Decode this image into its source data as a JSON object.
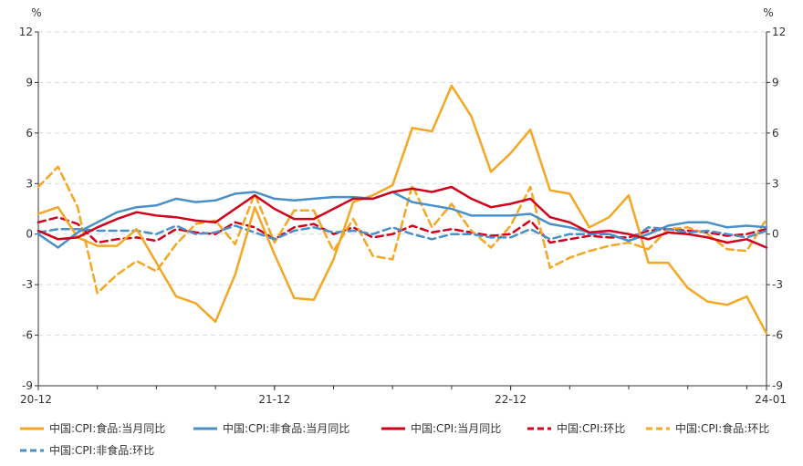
{
  "chart_data": {
    "type": "line",
    "title": "",
    "xlabel": "",
    "ylabel": "",
    "y_unit_left": "%",
    "y_unit_right": "%",
    "ylim": [
      -9,
      12
    ],
    "yticks": [
      -9,
      -6,
      -3,
      0,
      3,
      6,
      9,
      12
    ],
    "x_tick_labels": [
      {
        "label": "20-12",
        "index": 0
      },
      {
        "label": "21-12",
        "index": 12
      },
      {
        "label": "22-12",
        "index": 24
      },
      {
        "label": "24-01",
        "index": 37
      }
    ],
    "x": [
      "2020-12",
      "2021-01",
      "2021-02",
      "2021-03",
      "2021-04",
      "2021-05",
      "2021-06",
      "2021-07",
      "2021-08",
      "2021-09",
      "2021-10",
      "2021-11",
      "2021-12",
      "2022-01",
      "2022-02",
      "2022-03",
      "2022-04",
      "2022-05",
      "2022-06",
      "2022-07",
      "2022-08",
      "2022-09",
      "2022-10",
      "2022-11",
      "2022-12",
      "2023-01",
      "2023-02",
      "2023-03",
      "2023-04",
      "2023-05",
      "2023-06",
      "2023-07",
      "2023-08",
      "2023-09",
      "2023-10",
      "2023-11",
      "2023-12",
      "2024-01"
    ],
    "grid": true,
    "legend_position": "bottom",
    "series": [
      {
        "name": "中国:CPI:食品:当月同比",
        "color": "#F5A623",
        "dash": "solid",
        "values": [
          1.2,
          1.6,
          -0.2,
          -0.7,
          -0.7,
          0.3,
          -1.7,
          -3.7,
          -4.1,
          -5.2,
          -2.4,
          1.6,
          -1.2,
          -3.8,
          -3.9,
          -1.5,
          1.9,
          2.3,
          2.9,
          6.3,
          6.1,
          8.8,
          7.0,
          3.7,
          4.8,
          6.2,
          2.6,
          2.4,
          0.4,
          1.0,
          2.3,
          -1.7,
          -1.7,
          -3.2,
          -4.0,
          -4.2,
          -3.7,
          -5.9
        ]
      },
      {
        "name": "中国:CPI:非食品:当月同比",
        "color": "#4A90C8",
        "dash": "solid",
        "values": [
          0.0,
          -0.8,
          0.1,
          0.7,
          1.3,
          1.6,
          1.7,
          2.1,
          1.9,
          2.0,
          2.4,
          2.5,
          2.1,
          2.0,
          2.1,
          2.2,
          2.2,
          2.1,
          2.5,
          1.9,
          1.7,
          1.5,
          1.1,
          1.1,
          1.1,
          1.2,
          0.6,
          0.4,
          0.1,
          0.0,
          -0.4,
          0.0,
          0.5,
          0.7,
          0.7,
          0.4,
          0.5,
          0.4
        ]
      },
      {
        "name": "中国:CPI:当月同比",
        "color": "#D0021B",
        "dash": "solid",
        "values": [
          0.2,
          -0.3,
          -0.2,
          0.4,
          0.9,
          1.3,
          1.1,
          1.0,
          0.8,
          0.7,
          1.5,
          2.3,
          1.5,
          0.9,
          0.9,
          1.5,
          2.1,
          2.1,
          2.5,
          2.7,
          2.5,
          2.8,
          2.1,
          1.6,
          1.8,
          2.1,
          1.0,
          0.7,
          0.1,
          0.2,
          0.0,
          -0.3,
          0.1,
          0.0,
          -0.2,
          -0.5,
          -0.3,
          -0.8
        ]
      },
      {
        "name": "中国:CPI:环比",
        "color": "#D0021B",
        "dash": "dashed",
        "values": [
          0.7,
          1.0,
          0.6,
          -0.5,
          -0.3,
          -0.2,
          -0.4,
          0.3,
          0.1,
          0.0,
          0.7,
          0.4,
          -0.3,
          0.4,
          0.6,
          0.0,
          0.4,
          -0.2,
          0.0,
          0.5,
          0.1,
          0.3,
          0.1,
          -0.1,
          0.0,
          0.8,
          -0.5,
          -0.3,
          -0.1,
          -0.2,
          -0.2,
          0.2,
          0.3,
          0.2,
          0.1,
          -0.1,
          0.0,
          0.3
        ]
      },
      {
        "name": "中国:CPI:食品:环比",
        "color": "#F5A623",
        "dash": "dashed",
        "values": [
          2.8,
          4.0,
          1.6,
          -3.5,
          -2.4,
          -1.6,
          -2.2,
          -0.6,
          0.6,
          0.8,
          -0.6,
          2.4,
          -0.5,
          1.4,
          1.4,
          -1.0,
          0.9,
          -1.3,
          -1.5,
          2.9,
          0.4,
          1.8,
          0.2,
          -0.8,
          0.5,
          2.8,
          -2.0,
          -1.4,
          -1.0,
          -0.7,
          -0.5,
          -0.9,
          0.3,
          0.4,
          0.0,
          -0.9,
          -1.0,
          0.9
        ]
      },
      {
        "name": "中国:CPI:非食品:环比",
        "color": "#4A90C8",
        "dash": "dashed",
        "values": [
          0.1,
          0.3,
          0.3,
          0.2,
          0.2,
          0.2,
          0.0,
          0.5,
          0.0,
          0.1,
          0.5,
          0.1,
          -0.3,
          0.2,
          0.4,
          0.1,
          0.2,
          0.0,
          0.4,
          0.0,
          -0.3,
          0.0,
          0.0,
          -0.2,
          -0.2,
          0.3,
          -0.3,
          0.0,
          0.0,
          0.0,
          -0.4,
          0.4,
          0.3,
          0.1,
          0.2,
          0.0,
          -0.2,
          0.2
        ]
      }
    ]
  }
}
